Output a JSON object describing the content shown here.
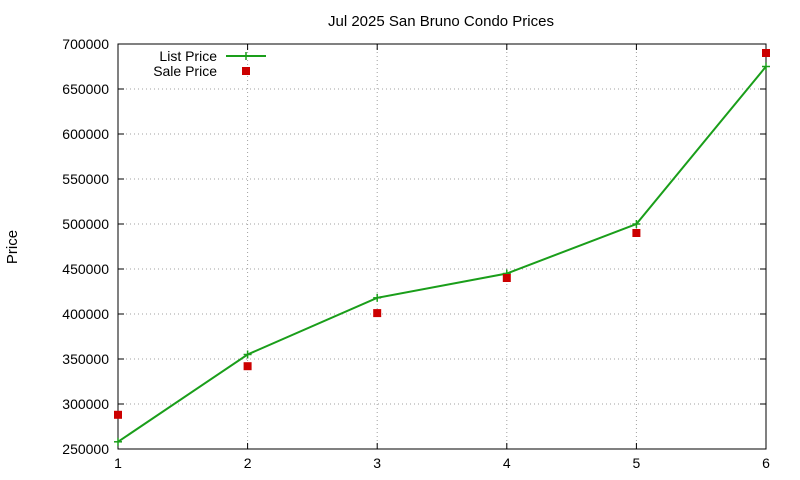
{
  "chart_data": {
    "type": "line",
    "title": "Jul 2025 San Bruno Condo Prices",
    "xlabel": "",
    "ylabel": "Price",
    "x": [
      1,
      2,
      3,
      4,
      5,
      6
    ],
    "xlim": [
      1,
      6
    ],
    "ylim": [
      250000,
      700000
    ],
    "xticks": [
      1,
      2,
      3,
      4,
      5,
      6
    ],
    "yticks": [
      250000,
      300000,
      350000,
      400000,
      450000,
      500000,
      550000,
      600000,
      650000,
      700000
    ],
    "grid": true,
    "legend_position": "top-left",
    "series": [
      {
        "name": "List Price",
        "style": "line+cross",
        "color": "#1a9e1a",
        "values": [
          258000,
          355000,
          418000,
          445000,
          500000,
          675000
        ]
      },
      {
        "name": "Sale Price",
        "style": "square-points",
        "color": "#cc0000",
        "values": [
          288000,
          342000,
          401000,
          440000,
          490000,
          690000
        ]
      }
    ]
  }
}
